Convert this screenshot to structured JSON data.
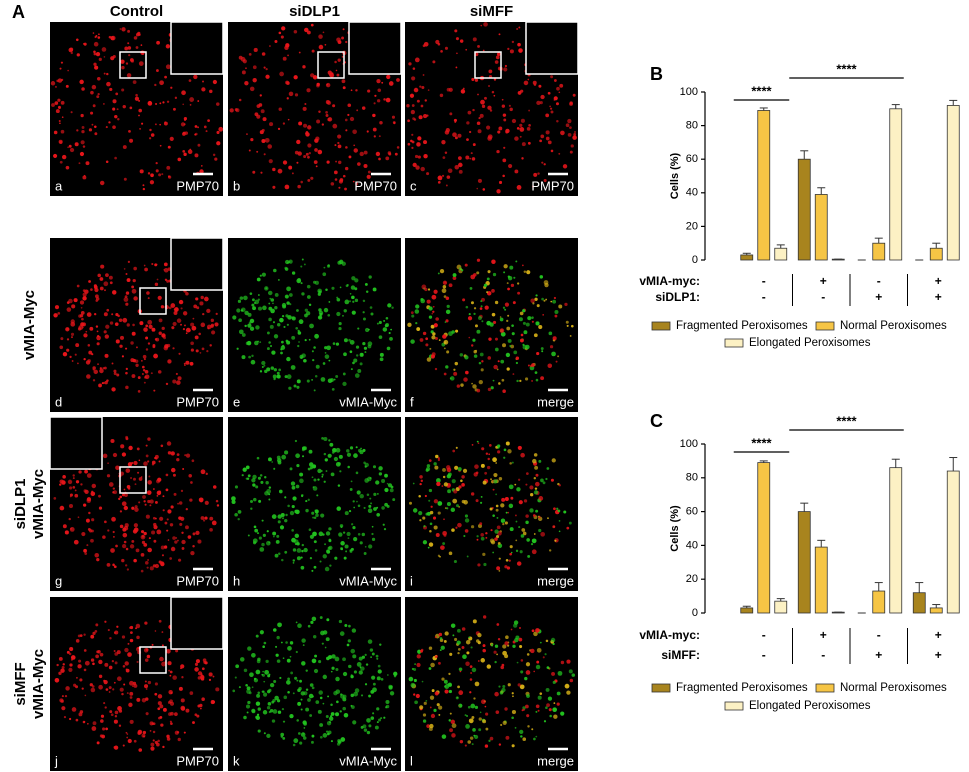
{
  "figure_letter": "A",
  "microscopy": {
    "column_headers": [
      "Control",
      "siDLP1",
      "siMFF"
    ],
    "row_labels": [
      [
        "vMIA-Myc"
      ],
      [
        "siDLP1",
        "vMIA-Myc"
      ],
      [
        "siMFF",
        "vMIA-Myc"
      ]
    ],
    "panels": [
      {
        "letter": "a",
        "marker": "PMP70"
      },
      {
        "letter": "b",
        "marker": "PMP70"
      },
      {
        "letter": "c",
        "marker": "PMP70"
      },
      {
        "letter": "d",
        "marker": "PMP70"
      },
      {
        "letter": "e",
        "marker": "vMIA-Myc"
      },
      {
        "letter": "f",
        "marker": "merge"
      },
      {
        "letter": "g",
        "marker": "PMP70"
      },
      {
        "letter": "h",
        "marker": "vMIA-Myc"
      },
      {
        "letter": "i",
        "marker": "merge"
      },
      {
        "letter": "j",
        "marker": "PMP70"
      },
      {
        "letter": "k",
        "marker": "vMIA-Myc"
      },
      {
        "letter": "l",
        "marker": "merge"
      }
    ]
  },
  "chart_data": [
    {
      "type": "bar",
      "panel": "B",
      "y_label": "Cells (%)",
      "ylim": [
        0,
        100
      ],
      "yticks": [
        0,
        20,
        40,
        60,
        80,
        100
      ],
      "significance": [
        "****",
        "****"
      ],
      "conditions": [
        {
          "name": "vMIA-myc:",
          "signs": [
            "-",
            "+",
            "-",
            "+"
          ]
        },
        {
          "name": "siDLP1:",
          "signs": [
            "-",
            "-",
            "+",
            "+"
          ]
        }
      ],
      "series": [
        {
          "name": "Fragmented Peroxisomes",
          "color": "#a8841e",
          "values": [
            3,
            60,
            0,
            0
          ],
          "errors": [
            1,
            5,
            0,
            0
          ]
        },
        {
          "name": "Normal Peroxisomes",
          "color": "#f6c545",
          "values": [
            89,
            39,
            10,
            7
          ],
          "errors": [
            1.5,
            4,
            3,
            3
          ]
        },
        {
          "name": "Elongated Peroxisomes",
          "color": "#fcf1c4",
          "values": [
            7,
            0.5,
            90,
            92
          ],
          "errors": [
            2,
            0,
            2.5,
            3
          ]
        }
      ]
    },
    {
      "type": "bar",
      "panel": "C",
      "y_label": "Cells (%)",
      "ylim": [
        0,
        100
      ],
      "yticks": [
        0,
        20,
        40,
        60,
        80,
        100
      ],
      "significance": [
        "****",
        "****"
      ],
      "conditions": [
        {
          "name": "vMIA-myc:",
          "signs": [
            "-",
            "+",
            "-",
            "+"
          ]
        },
        {
          "name": "siMFF:",
          "signs": [
            "-",
            "-",
            "+",
            "+"
          ]
        }
      ],
      "series": [
        {
          "name": "Fragmented Peroxisomes",
          "color": "#a8841e",
          "values": [
            3,
            60,
            0,
            12
          ],
          "errors": [
            1,
            5,
            0,
            6
          ]
        },
        {
          "name": "Normal Peroxisomes",
          "color": "#f6c545",
          "values": [
            89,
            39,
            13,
            3
          ],
          "errors": [
            1,
            4,
            5,
            2
          ]
        },
        {
          "name": "Elongated Peroxisomes",
          "color": "#fcf1c4",
          "values": [
            7,
            0.5,
            86,
            84
          ],
          "errors": [
            1.5,
            0,
            5,
            8
          ]
        }
      ]
    }
  ]
}
